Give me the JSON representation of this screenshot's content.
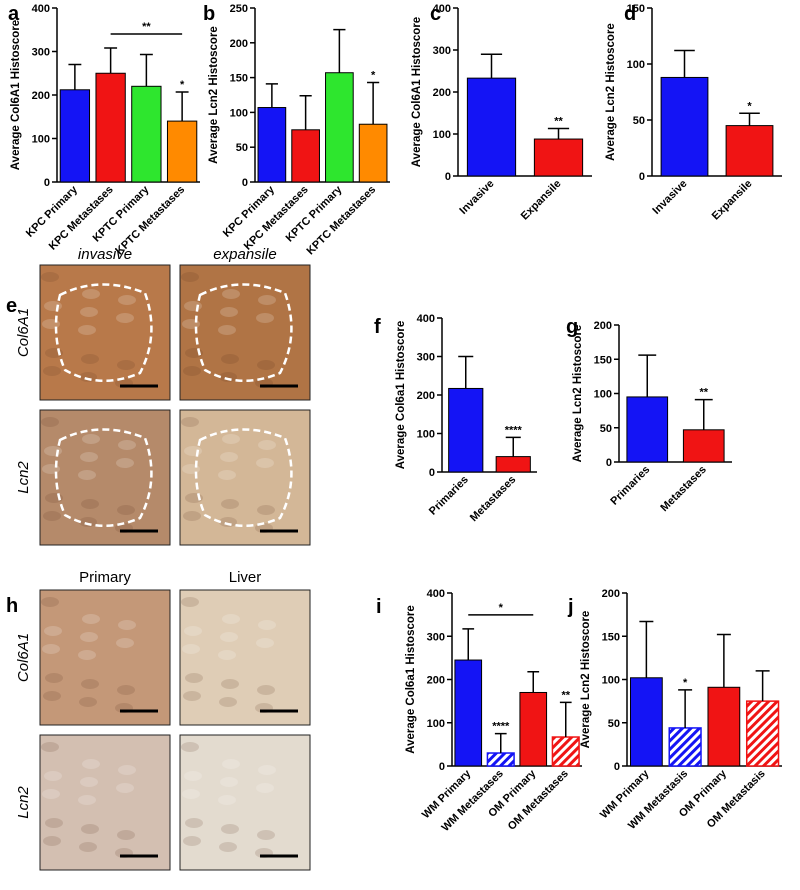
{
  "chart_data": [
    {
      "type": "bar",
      "panel": "a",
      "ylabel": "Average Col6A1 Histoscore",
      "categories": [
        "KPC Primary",
        "KPC Metastases",
        "KPTC Primary",
        "KPTC Metastases"
      ],
      "values": [
        212,
        250,
        220,
        140
      ],
      "errors": [
        58,
        58,
        73,
        67
      ],
      "colors": [
        "#1414f5",
        "#f01414",
        "#2ee62e",
        "#ff8a00"
      ],
      "hatched": [
        false,
        false,
        false,
        false
      ],
      "ylim": [
        0,
        400
      ],
      "yticks": [
        0,
        100,
        200,
        300,
        400
      ],
      "sig_labels": [
        null,
        null,
        null,
        "*"
      ],
      "bracket": {
        "label": "**",
        "between": [
          1,
          3
        ]
      }
    },
    {
      "type": "bar",
      "panel": "b",
      "ylabel": "Average Lcn2 Histoscore",
      "categories": [
        "KPC Primary",
        "KPC Metastases",
        "KPTC Primary",
        "KPTC Metastases"
      ],
      "values": [
        107,
        75,
        157,
        83
      ],
      "errors": [
        34,
        49,
        62,
        60
      ],
      "colors": [
        "#1414f5",
        "#f01414",
        "#2ee62e",
        "#ff8a00"
      ],
      "hatched": [
        false,
        false,
        false,
        false
      ],
      "ylim": [
        0,
        250
      ],
      "yticks": [
        0,
        50,
        100,
        150,
        200,
        250
      ],
      "sig_labels": [
        null,
        null,
        null,
        "*"
      ]
    },
    {
      "type": "bar",
      "panel": "c",
      "ylabel": "Average Col6A1 Histoscore",
      "categories": [
        "Invasive",
        "Expansile"
      ],
      "values": [
        233,
        88
      ],
      "errors": [
        57,
        25
      ],
      "colors": [
        "#1414f5",
        "#f01414"
      ],
      "hatched": [
        false,
        false
      ],
      "ylim": [
        0,
        400
      ],
      "yticks": [
        0,
        100,
        200,
        300,
        400
      ],
      "sig_labels": [
        null,
        "**"
      ]
    },
    {
      "type": "bar",
      "panel": "d",
      "ylabel": "Average Lcn2 Histoscore",
      "categories": [
        "Invasive",
        "Expansile"
      ],
      "values": [
        88,
        45
      ],
      "errors": [
        24,
        11
      ],
      "colors": [
        "#1414f5",
        "#f01414"
      ],
      "hatched": [
        false,
        false
      ],
      "ylim": [
        0,
        150
      ],
      "yticks": [
        0,
        50,
        100,
        150
      ],
      "sig_labels": [
        null,
        "*"
      ]
    },
    {
      "type": "bar",
      "panel": "f",
      "ylabel": "Average Col6a1 Histoscore",
      "categories": [
        "Primaries",
        "Metastases"
      ],
      "values": [
        217,
        40
      ],
      "errors": [
        83,
        50
      ],
      "colors": [
        "#1414f5",
        "#f01414"
      ],
      "hatched": [
        false,
        false
      ],
      "ylim": [
        0,
        400
      ],
      "yticks": [
        0,
        100,
        200,
        300,
        400
      ],
      "sig_labels": [
        null,
        "****"
      ]
    },
    {
      "type": "bar",
      "panel": "g",
      "ylabel": "Average Lcn2 Histoscore",
      "categories": [
        "Primaries",
        "Metastases"
      ],
      "values": [
        95,
        47
      ],
      "errors": [
        61,
        44
      ],
      "colors": [
        "#1414f5",
        "#f01414"
      ],
      "hatched": [
        false,
        false
      ],
      "ylim": [
        0,
        200
      ],
      "yticks": [
        0,
        50,
        100,
        150,
        200
      ],
      "sig_labels": [
        null,
        "**"
      ]
    },
    {
      "type": "bar",
      "panel": "i",
      "ylabel": "Average Col6a1 Histoscore",
      "categories": [
        "WM Primary",
        "WM Metastases",
        "OM Primary",
        "OM Metastases"
      ],
      "values": [
        245,
        30,
        170,
        67
      ],
      "errors": [
        72,
        45,
        48,
        80
      ],
      "colors": [
        "#1414f5",
        "#1414f5",
        "#f01414",
        "#f01414"
      ],
      "hatched": [
        false,
        true,
        false,
        true
      ],
      "ylim": [
        0,
        400
      ],
      "yticks": [
        0,
        100,
        200,
        300,
        400
      ],
      "sig_labels": [
        null,
        "****",
        null,
        "**"
      ],
      "bracket": {
        "label": "*",
        "between": [
          0,
          2
        ]
      }
    },
    {
      "type": "bar",
      "panel": "j",
      "ylabel": "Average Lcn2 Histoscore",
      "categories": [
        "WM Primary",
        "WM Metastasis",
        "OM Primary",
        "OM Metastasis"
      ],
      "values": [
        102,
        44,
        91,
        75
      ],
      "errors": [
        65,
        44,
        61,
        35
      ],
      "colors": [
        "#1414f5",
        "#1414f5",
        "#f01414",
        "#f01414"
      ],
      "hatched": [
        false,
        true,
        false,
        true
      ],
      "ylim": [
        0,
        200
      ],
      "yticks": [
        0,
        50,
        100,
        150,
        200
      ],
      "sig_labels": [
        null,
        "*",
        null,
        null
      ]
    }
  ],
  "image_panels": [
    {
      "panel": "e",
      "columns": [
        "invasive",
        "expansile"
      ],
      "rows": [
        "Col6A1",
        "Lcn2"
      ]
    },
    {
      "panel": "h",
      "columns": [
        "Primary",
        "Liver"
      ],
      "rows": [
        "Col6A1",
        "Lcn2"
      ]
    }
  ]
}
